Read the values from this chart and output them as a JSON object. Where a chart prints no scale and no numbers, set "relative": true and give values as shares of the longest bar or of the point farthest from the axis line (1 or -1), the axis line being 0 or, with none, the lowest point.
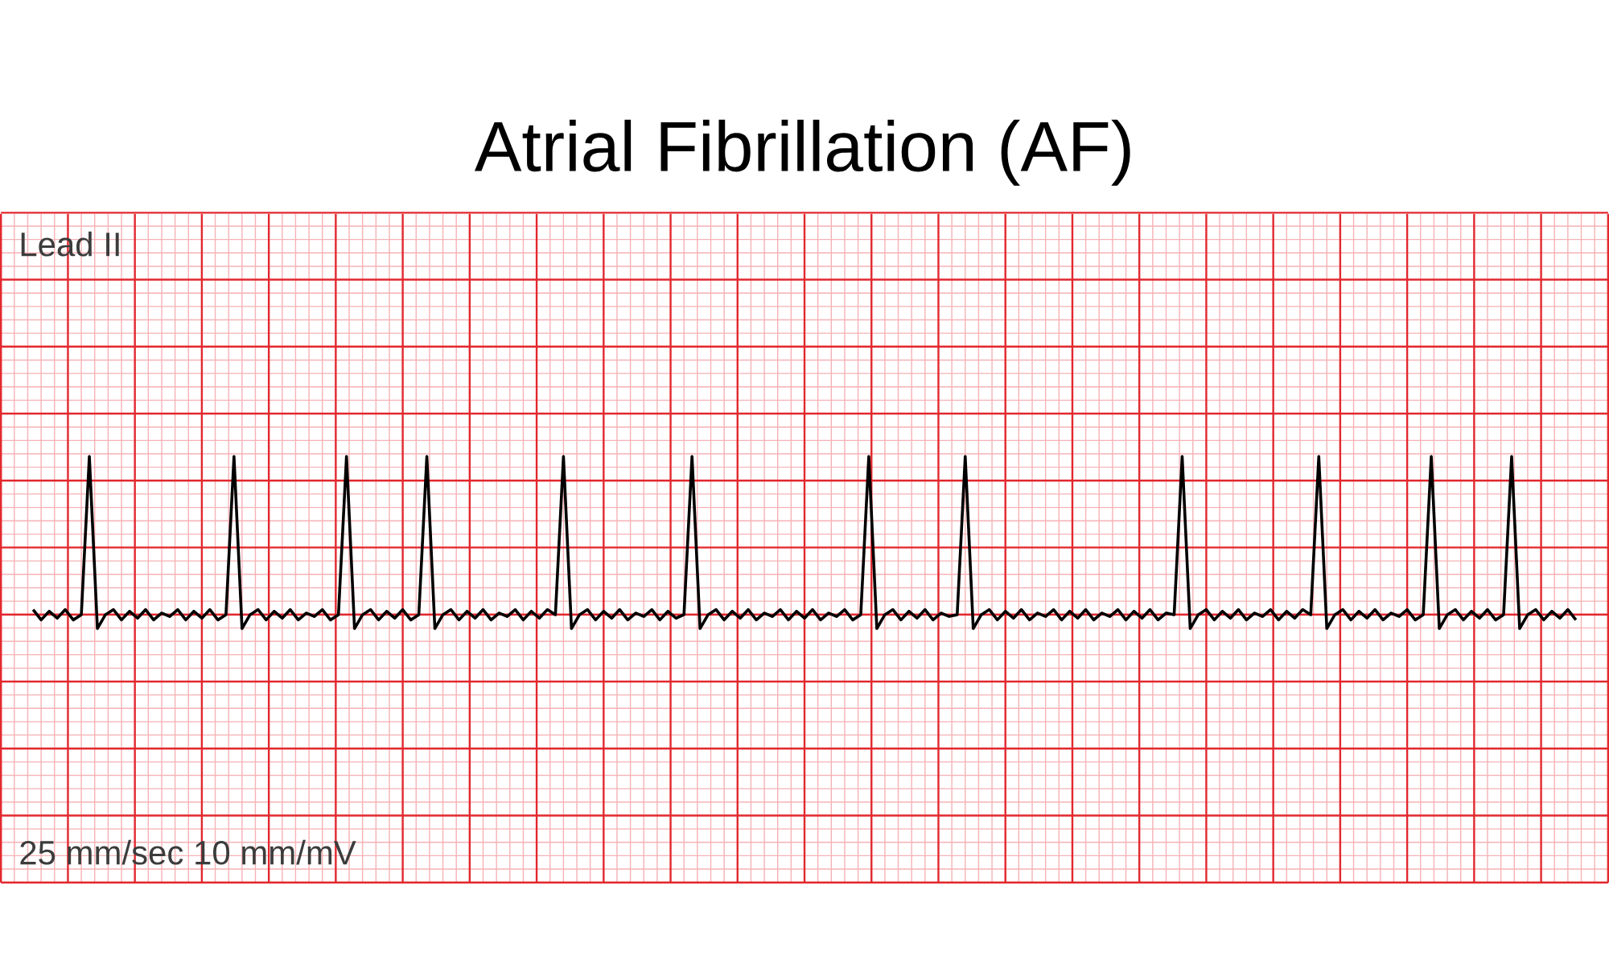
{
  "chart_data": {
    "type": "line",
    "title": "Atrial Fibrillation (AF)",
    "annotations": [
      "Lead II",
      "25 mm/sec 10 mm/mV"
    ],
    "categories": [
      null,
      null,
      null,
      null,
      null,
      null,
      null,
      null,
      null,
      null,
      null,
      null,
      null,
      null,
      null,
      null,
      null,
      null,
      null,
      null,
      null,
      null,
      null,
      null,
      null,
      null,
      null,
      null,
      null,
      null,
      null,
      null,
      null,
      null,
      null,
      null,
      null,
      null,
      null,
      null,
      null,
      null,
      null,
      null,
      null,
      null,
      null,
      null,
      null,
      null,
      null,
      null,
      null,
      null,
      null,
      null,
      null,
      null,
      null,
      null,
      null,
      null,
      null,
      null,
      null,
      null,
      null,
      null,
      null,
      null,
      null,
      null,
      null,
      null,
      null,
      null,
      null,
      null,
      null,
      null,
      null,
      null,
      null,
      null,
      null,
      null,
      null,
      null,
      null,
      null,
      null,
      null,
      null,
      null,
      null,
      null,
      null,
      null,
      null,
      null,
      null,
      null,
      null,
      null,
      null,
      null,
      null,
      null,
      null,
      null,
      null,
      null,
      null,
      null,
      null,
      null,
      null,
      null,
      null,
      null,
      null,
      null,
      null,
      null,
      null,
      null,
      null,
      null,
      null,
      null,
      null,
      null,
      null,
      null,
      null,
      null,
      null,
      null,
      null,
      null,
      null,
      null,
      null,
      null,
      null,
      null,
      null,
      null,
      null,
      null,
      null,
      null,
      null,
      null,
      null,
      null,
      null,
      null,
      null,
      null,
      null,
      null,
      null,
      null,
      null,
      null,
      null,
      null,
      null,
      null,
      null,
      null,
      null,
      null,
      null,
      null,
      null,
      null,
      null,
      null,
      null,
      null,
      null,
      null,
      null,
      null,
      null,
      null,
      null,
      null,
      null,
      null,
      null
    ],
    "series": [
      {
        "color": "#000000",
        "values": [
          0.11,
          0.05,
          0.1,
          0.06,
          0.11,
          0.05,
          0.08,
          1,
          0,
          0.08,
          0.11,
          0.05,
          0.1,
          0.06,
          0.11,
          0.05,
          0.09,
          0.07,
          0.11,
          0.05,
          0.1,
          0.06,
          0.11,
          0.05,
          0.08,
          1,
          0,
          0.08,
          0.11,
          0.05,
          0.1,
          0.06,
          0.11,
          0.05,
          0.09,
          0.07,
          0.11,
          0.05,
          0.08,
          1,
          0,
          0.08,
          0.11,
          0.05,
          0.1,
          0.06,
          0.11,
          0.05,
          0.08,
          1,
          0,
          0.08,
          0.11,
          0.05,
          0.1,
          0.06,
          0.11,
          0.05,
          0.09,
          0.07,
          0.11,
          0.05,
          0.1,
          0.06,
          0.11,
          0.08,
          1,
          0,
          0.08,
          0.11,
          0.05,
          0.1,
          0.06,
          0.11,
          0.05,
          0.09,
          0.07,
          0.11,
          0.05,
          0.1,
          0.06,
          0.08,
          1,
          0,
          0.08,
          0.11,
          0.05,
          0.1,
          0.06,
          0.11,
          0.05,
          0.09,
          0.07,
          0.11,
          0.05,
          0.1,
          0.06,
          0.11,
          0.05,
          0.09,
          0.07,
          0.11,
          0.05,
          0.08,
          1,
          0,
          0.08,
          0.11,
          0.05,
          0.1,
          0.06,
          0.11,
          0.05,
          0.09,
          0.07,
          0.08,
          1,
          0,
          0.08,
          0.11,
          0.05,
          0.1,
          0.06,
          0.11,
          0.05,
          0.09,
          0.07,
          0.11,
          0.05,
          0.1,
          0.06,
          0.11,
          0.05,
          0.09,
          0.07,
          0.11,
          0.05,
          0.1,
          0.06,
          0.11,
          0.05,
          0.09,
          0.08,
          1,
          0,
          0.08,
          0.11,
          0.05,
          0.1,
          0.06,
          0.11,
          0.05,
          0.09,
          0.07,
          0.11,
          0.05,
          0.1,
          0.06,
          0.11,
          0.08,
          1,
          0,
          0.08,
          0.11,
          0.05,
          0.1,
          0.06,
          0.11,
          0.05,
          0.09,
          0.07,
          0.11,
          0.05,
          0.08,
          1,
          0,
          0.08,
          0.11,
          0.05,
          0.1,
          0.06,
          0.11,
          0.05,
          0.08,
          1,
          0,
          0.08,
          0.11,
          0.05,
          0.1,
          0.06,
          0.11,
          0.05
        ]
      }
    ],
    "relative": true,
    "grid": true,
    "line_style": "solid"
  }
}
